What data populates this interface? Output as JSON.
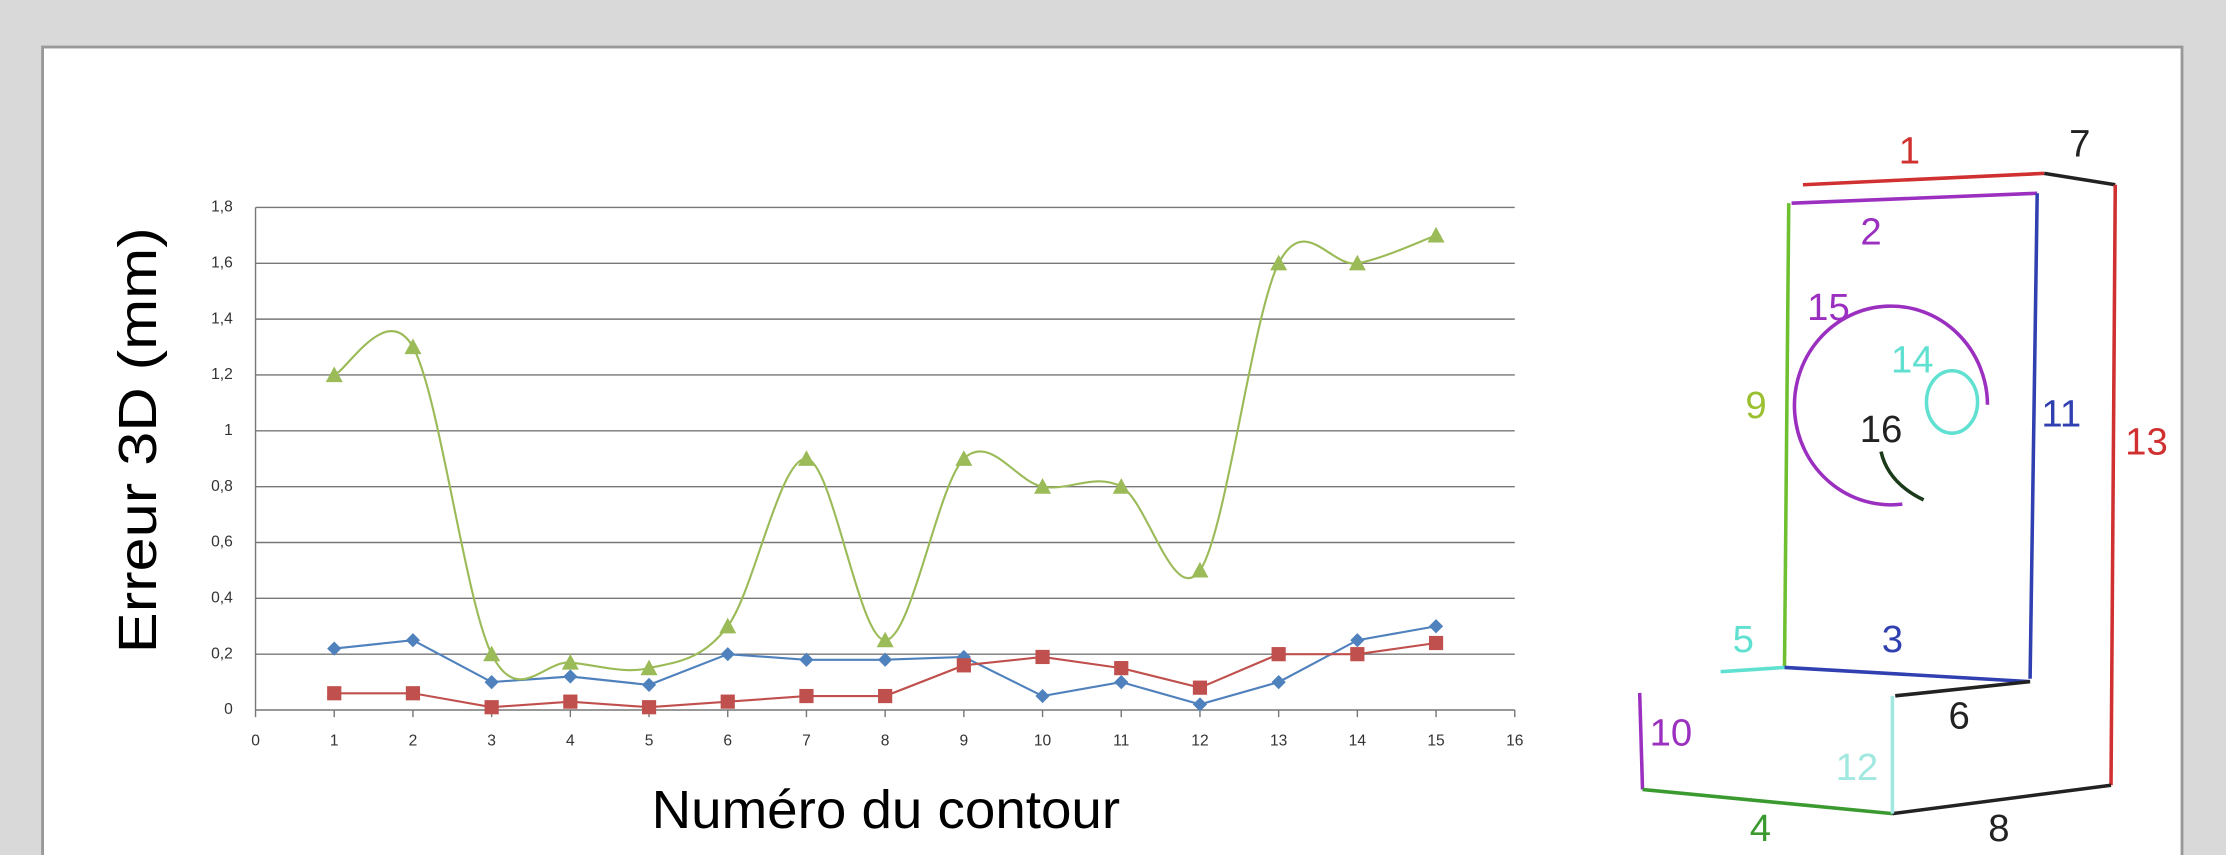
{
  "chart_data": {
    "type": "line",
    "ylabel": "Erreur 3D (mm)",
    "xlabel": "Numéro du contour",
    "x": [
      1,
      2,
      3,
      4,
      5,
      6,
      7,
      8,
      9,
      10,
      11,
      12,
      13,
      14,
      15
    ],
    "series": [
      {
        "color": "#4f81bd",
        "marker": "diamond",
        "smooth": false,
        "values": [
          0.22,
          0.25,
          0.1,
          0.12,
          0.09,
          0.2,
          0.18,
          0.18,
          0.19,
          0.05,
          0.1,
          0.02,
          0.1,
          0.25,
          0.3
        ]
      },
      {
        "color": "#c0504d",
        "marker": "square",
        "smooth": false,
        "values": [
          0.06,
          0.06,
          0.01,
          0.03,
          0.01,
          0.03,
          0.05,
          0.05,
          0.16,
          0.19,
          0.15,
          0.08,
          0.2,
          0.2,
          0.24
        ]
      },
      {
        "color": "#9bbb59",
        "marker": "triangle",
        "smooth": true,
        "values": [
          1.2,
          1.3,
          0.2,
          0.17,
          0.15,
          0.3,
          0.9,
          0.25,
          0.9,
          0.8,
          0.8,
          0.5,
          1.6,
          1.6,
          1.7
        ]
      }
    ],
    "xlim": [
      0,
      16
    ],
    "xticks": [
      0,
      1,
      2,
      3,
      4,
      5,
      6,
      7,
      8,
      9,
      10,
      11,
      12,
      13,
      14,
      15,
      16
    ],
    "ylim": [
      0,
      1.8
    ],
    "yticks": [
      0,
      {
        "value": 0.2,
        "label": "0,2"
      },
      {
        "value": 0.4,
        "label": "0,4"
      },
      {
        "value": 0.6,
        "label": "0,6"
      },
      {
        "value": 0.8,
        "label": "0,8"
      },
      1,
      {
        "value": 1.2,
        "label": "1,2"
      },
      {
        "value": 1.4,
        "label": "1,4"
      },
      {
        "value": 1.6,
        "label": "1,6"
      },
      {
        "value": 1.8,
        "label": "1,8"
      }
    ],
    "grid": true
  },
  "diagram": {
    "labels": [
      "1",
      "2",
      "3",
      "4",
      "5",
      "6",
      "7",
      "8",
      "9",
      "10",
      "11",
      "12",
      "13",
      "14",
      "15",
      "16"
    ]
  }
}
